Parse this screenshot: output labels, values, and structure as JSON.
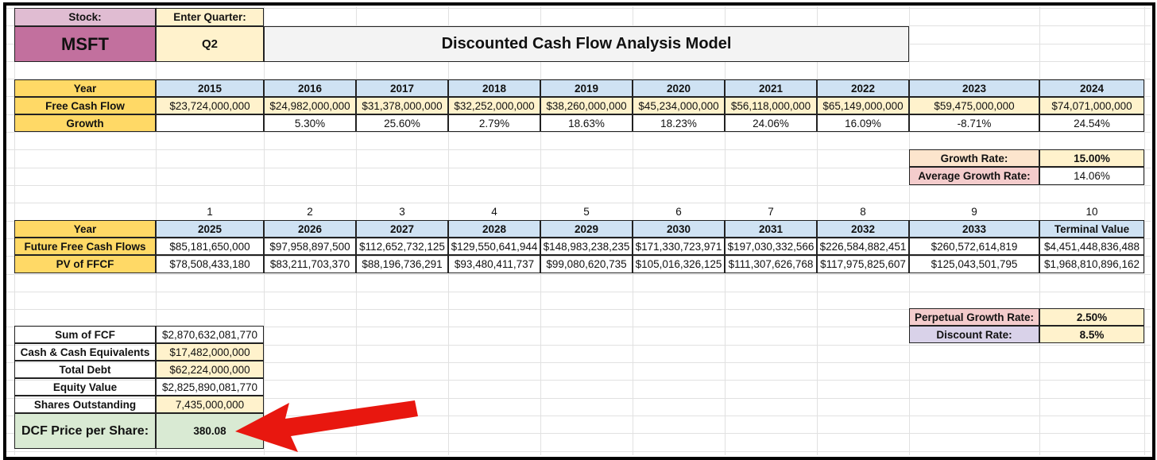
{
  "header": {
    "stock_label": "Stock:",
    "quarter_label": "Enter Quarter:",
    "ticker": "MSFT",
    "quarter": "Q2",
    "title": "Discounted Cash Flow Analysis Model"
  },
  "historical": {
    "row_labels": [
      "Year",
      "Free Cash Flow",
      "Growth"
    ],
    "years": [
      "2015",
      "2016",
      "2017",
      "2018",
      "2019",
      "2020",
      "2021",
      "2022",
      "2023",
      "2024"
    ],
    "fcf": [
      "$23,724,000,000",
      "$24,982,000,000",
      "$31,378,000,000",
      "$32,252,000,000",
      "$38,260,000,000",
      "$45,234,000,000",
      "$56,118,000,000",
      "$65,149,000,000",
      "$59,475,000,000",
      "$74,071,000,000"
    ],
    "growth": [
      "",
      "5.30%",
      "25.60%",
      "2.79%",
      "18.63%",
      "18.23%",
      "24.06%",
      "16.09%",
      "-8.71%",
      "24.54%"
    ]
  },
  "rates1": {
    "growth_rate_label": "Growth Rate:",
    "growth_rate": "15.00%",
    "avg_growth_label": "Average Growth Rate:",
    "avg_growth": "14.06%"
  },
  "projection": {
    "index": [
      "1",
      "2",
      "3",
      "4",
      "5",
      "6",
      "7",
      "8",
      "9",
      "10"
    ],
    "row_labels": [
      "Year",
      "Future Free Cash Flows",
      "PV of FFCF"
    ],
    "years": [
      "2025",
      "2026",
      "2027",
      "2028",
      "2029",
      "2030",
      "2031",
      "2032",
      "2033",
      "Terminal Value"
    ],
    "ffcf": [
      "$85,181,650,000",
      "$97,958,897,500",
      "$112,652,732,125",
      "$129,550,641,944",
      "$148,983,238,235",
      "$171,330,723,971",
      "$197,030,332,566",
      "$226,584,882,451",
      "$260,572,614,819",
      "$4,451,448,836,488"
    ],
    "pv": [
      "$78,508,433,180",
      "$83,211,703,370",
      "$88,196,736,291",
      "$93,480,411,737",
      "$99,080,620,735",
      "$105,016,326,125",
      "$111,307,626,768",
      "$117,975,825,607",
      "$125,043,501,795",
      "$1,968,810,896,162"
    ]
  },
  "rates2": {
    "perpetual_label": "Perpetual Growth Rate:",
    "perpetual": "2.50%",
    "discount_label": "Discount Rate:",
    "discount": "8.5%"
  },
  "summary": {
    "rows": [
      {
        "label": "Sum of FCF",
        "value": "$2,870,632,081,770"
      },
      {
        "label": "Cash & Cash Equivalents",
        "value": "$17,482,000,000"
      },
      {
        "label": "Total Debt",
        "value": "$62,224,000,000"
      },
      {
        "label": "Equity Value",
        "value": "$2,825,890,081,770"
      },
      {
        "label": "Shares Outstanding",
        "value": "7,435,000,000"
      }
    ],
    "price_label": "DCF Price per Share:",
    "price": "380.08"
  },
  "colors": {
    "pink_label": "#e0bcd2",
    "ticker_bg": "#c2709e",
    "cream": "#fff2cc",
    "blue_header": "#cfe2f3",
    "year_yellow": "#ffd966",
    "title_bg": "#f3f3f3",
    "peach": "#fce5cd",
    "rose": "#f4cccc",
    "lavender": "#d9d2e9",
    "green": "#d9ead3",
    "arrow": "#e8170f"
  },
  "annotation": {
    "arrow": "red-arrow-pointing-left"
  }
}
